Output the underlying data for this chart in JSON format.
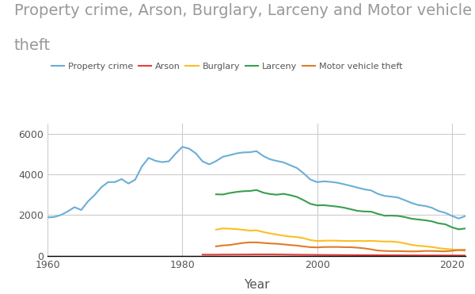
{
  "title_line1": "Property crime, Arson, Burglary, Larceny and Motor vehicle",
  "title_line2": "theft",
  "xlabel": "Year",
  "title_fontsize": 14,
  "title_color": "#999999",
  "xlabel_fontsize": 11,
  "background_color": "#ffffff",
  "grid_color": "#cccccc",
  "ylim": [
    0,
    6500
  ],
  "yticks": [
    0,
    2000,
    4000,
    6000
  ],
  "xticks": [
    1960,
    1980,
    2000,
    2020
  ],
  "series": {
    "Property crime": {
      "color": "#6baed6",
      "data": {
        "1960": 1887,
        "1961": 1906,
        "1962": 2006,
        "1963": 2180,
        "1964": 2388,
        "1965": 2249,
        "1966": 2670,
        "1967": 2990,
        "1968": 3370,
        "1969": 3620,
        "1970": 3621,
        "1971": 3769,
        "1972": 3550,
        "1973": 3737,
        "1974": 4389,
        "1975": 4811,
        "1976": 4667,
        "1977": 4602,
        "1978": 4642,
        "1979": 5017,
        "1980": 5353,
        "1981": 5264,
        "1982": 5032,
        "1983": 4637,
        "1984": 4492,
        "1985": 4651,
        "1986": 4863,
        "1987": 4940,
        "1988": 5027,
        "1989": 5078,
        "1990": 5088,
        "1991": 5140,
        "1992": 4903,
        "1993": 4740,
        "1994": 4660,
        "1995": 4591,
        "1996": 4450,
        "1997": 4312,
        "1998": 4049,
        "1999": 3744,
        "2000": 3618,
        "2001": 3658,
        "2002": 3631,
        "2003": 3589,
        "2004": 3514,
        "2005": 3432,
        "2006": 3346,
        "2007": 3264,
        "2008": 3212,
        "2009": 3041,
        "2010": 2942,
        "2011": 2905,
        "2012": 2860,
        "2013": 2731,
        "2014": 2596,
        "2015": 2490,
        "2016": 2450,
        "2017": 2362,
        "2018": 2199,
        "2019": 2110,
        "2020": 1958,
        "2021": 1832,
        "2022": 1954
      }
    },
    "Arson": {
      "color": "#e6403a",
      "start_year": 1983,
      "data": {
        "1983": 58,
        "1984": 55,
        "1985": 57,
        "1986": 60,
        "1987": 60,
        "1988": 62,
        "1989": 63,
        "1990": 65,
        "1991": 68,
        "1992": 68,
        "1993": 68,
        "1994": 65,
        "1995": 63,
        "1996": 57,
        "1997": 54,
        "1998": 51,
        "1999": 49,
        "2000": 44,
        "2001": 42,
        "2002": 40,
        "2003": 39,
        "2004": 36,
        "2005": 35,
        "2006": 32,
        "2007": 31,
        "2008": 29,
        "2009": 27,
        "2010": 26,
        "2011": 24,
        "2012": 23,
        "2013": 22,
        "2014": 20,
        "2015": 19,
        "2016": 19,
        "2017": 18,
        "2018": 17,
        "2019": 16,
        "2020": 15,
        "2021": 14,
        "2022": 13
      }
    },
    "Burglary": {
      "color": "#fbbf24",
      "start_year": 1985,
      "data": {
        "1985": 1283,
        "1986": 1345,
        "1987": 1330,
        "1988": 1310,
        "1989": 1277,
        "1990": 1236,
        "1991": 1252,
        "1992": 1168,
        "1993": 1099,
        "1994": 1042,
        "1995": 988,
        "1996": 944,
        "1997": 919,
        "1998": 863,
        "1999": 770,
        "2000": 728,
        "2001": 741,
        "2002": 747,
        "2003": 740,
        "2004": 730,
        "2005": 727,
        "2006": 729,
        "2007": 722,
        "2008": 733,
        "2009": 716,
        "2010": 700,
        "2011": 702,
        "2012": 671,
        "2013": 611,
        "2014": 537,
        "2015": 494,
        "2016": 468,
        "2017": 430,
        "2018": 376,
        "2019": 340,
        "2020": 314,
        "2021": 275,
        "2022": 244
      }
    },
    "Larceny": {
      "color": "#3a9e4f",
      "start_year": 1985,
      "data": {
        "1985": 3022,
        "1986": 3010,
        "1987": 3082,
        "1988": 3135,
        "1989": 3171,
        "1990": 3185,
        "1991": 3229,
        "1992": 3104,
        "1993": 3033,
        "1994": 3001,
        "1995": 3043,
        "1996": 2980,
        "1997": 2891,
        "1998": 2729,
        "1999": 2551,
        "2000": 2477,
        "2001": 2486,
        "2002": 2450,
        "2003": 2416,
        "2004": 2362,
        "2005": 2286,
        "2006": 2207,
        "2007": 2177,
        "2008": 2167,
        "2009": 2060,
        "2010": 1969,
        "2011": 1974,
        "2012": 1959,
        "2013": 1901,
        "2014": 1821,
        "2015": 1783,
        "2016": 1745,
        "2017": 1694,
        "2018": 1594,
        "2019": 1549,
        "2020": 1398,
        "2021": 1300,
        "2022": 1344
      }
    },
    "Motor vehicle theft": {
      "color": "#e07b2a",
      "start_year": 1985,
      "data": {
        "1985": 462,
        "1986": 508,
        "1987": 529,
        "1988": 582,
        "1989": 631,
        "1990": 658,
        "1991": 659,
        "1992": 631,
        "1993": 606,
        "1994": 591,
        "1995": 560,
        "1996": 526,
        "1997": 503,
        "1998": 459,
        "1999": 422,
        "2000": 412,
        "2001": 430,
        "2002": 433,
        "2003": 433,
        "2004": 422,
        "2005": 419,
        "2006": 398,
        "2007": 365,
        "2008": 315,
        "2009": 258,
        "2010": 239,
        "2011": 229,
        "2012": 230,
        "2013": 221,
        "2014": 216,
        "2015": 220,
        "2016": 237,
        "2017": 237,
        "2018": 228,
        "2019": 219,
        "2020": 246,
        "2021": 283,
        "2022": 294
      }
    }
  }
}
